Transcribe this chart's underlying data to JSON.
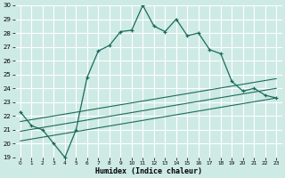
{
  "xlabel": "Humidex (Indice chaleur)",
  "bg_color": "#ceeae5",
  "grid_color": "#b0d8d2",
  "line_color": "#1a6b5e",
  "xlim": [
    -0.5,
    23.5
  ],
  "ylim": [
    19,
    30
  ],
  "xtick_labels": [
    "0",
    "1",
    "2",
    "3",
    "4",
    "5",
    "6",
    "7",
    "8",
    "9",
    "10",
    "11",
    "12",
    "13",
    "14",
    "15",
    "16",
    "17",
    "18",
    "19",
    "20",
    "21",
    "22",
    "23"
  ],
  "xtick_vals": [
    0,
    1,
    2,
    3,
    4,
    5,
    6,
    7,
    8,
    9,
    10,
    11,
    12,
    13,
    14,
    15,
    16,
    17,
    18,
    19,
    20,
    21,
    22,
    23
  ],
  "ytick_vals": [
    19,
    20,
    21,
    22,
    23,
    24,
    25,
    26,
    27,
    28,
    29,
    30
  ],
  "main_x": [
    0,
    1,
    2,
    3,
    4,
    5,
    6,
    7,
    8,
    9,
    10,
    11,
    12,
    13,
    14,
    15,
    16,
    17,
    18,
    19,
    20,
    21,
    22,
    23
  ],
  "main_y": [
    22.3,
    21.3,
    21.0,
    20.0,
    19.0,
    21.0,
    24.8,
    26.7,
    27.1,
    28.1,
    28.2,
    30.0,
    28.5,
    28.1,
    29.0,
    27.8,
    28.0,
    26.8,
    26.5,
    24.5,
    23.8,
    24.0,
    23.5,
    23.3
  ],
  "ref_lines": [
    {
      "x": [
        0,
        23
      ],
      "y": [
        20.2,
        23.3
      ]
    },
    {
      "x": [
        0,
        23
      ],
      "y": [
        20.9,
        24.0
      ]
    },
    {
      "x": [
        0,
        23
      ],
      "y": [
        21.6,
        24.7
      ]
    }
  ]
}
